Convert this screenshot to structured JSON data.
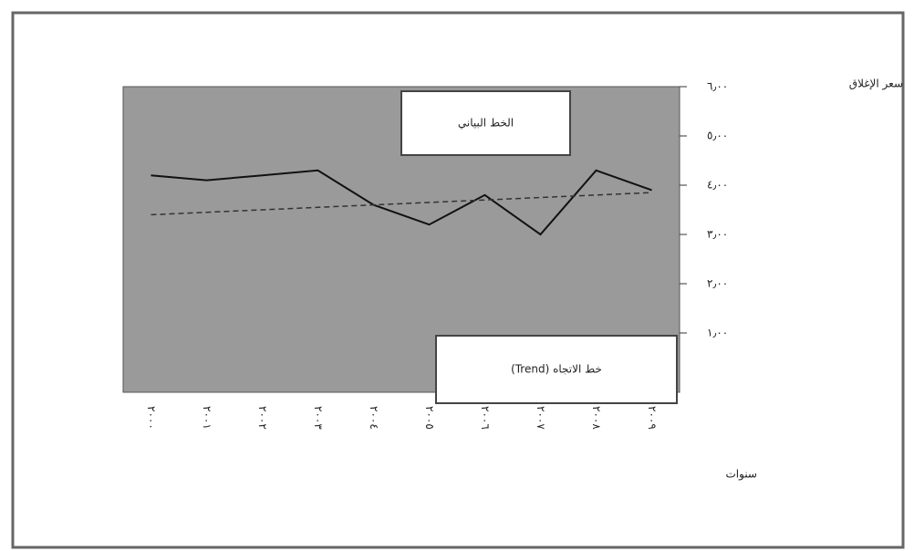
{
  "chart_data": {
    "type": "line",
    "y_label": "سعر الإغلاق",
    "x_label": "سنوات",
    "categories": [
      "٢٠٠٠",
      "٢٠٠١",
      "٢٠٠٢",
      "٢٠٠٣",
      "٢٠٠٤",
      "٢٠٠٥",
      "٢٠٠٦",
      "٢٠٠٧",
      "٢٠٠٨",
      "٢٠٠٩"
    ],
    "series": [
      {
        "name": "الخط البياني",
        "color": "#111111",
        "values": [
          4.2,
          4.1,
          4.2,
          4.3,
          3.6,
          3.2,
          3.8,
          3.0,
          4.3,
          3.9
        ]
      },
      {
        "name": "(Trend) خط الاتجاه",
        "color": "#333333",
        "values": [
          3.4,
          3.45,
          3.5,
          3.55,
          3.6,
          3.65,
          3.7,
          3.75,
          3.8,
          3.85
        ]
      }
    ],
    "ylim": [
      1,
      6
    ],
    "yticks": [
      {
        "value": 1,
        "label": "١٫٠٠"
      },
      {
        "value": 2,
        "label": "٢٫٠٠"
      },
      {
        "value": 3,
        "label": "٣٫٠٠"
      },
      {
        "value": 4,
        "label": "٤٫٠٠"
      },
      {
        "value": 5,
        "label": "٥٫٠٠"
      },
      {
        "value": 6,
        "label": "٦٫٠٠"
      }
    ],
    "plot_background": "#9a9a9a"
  }
}
